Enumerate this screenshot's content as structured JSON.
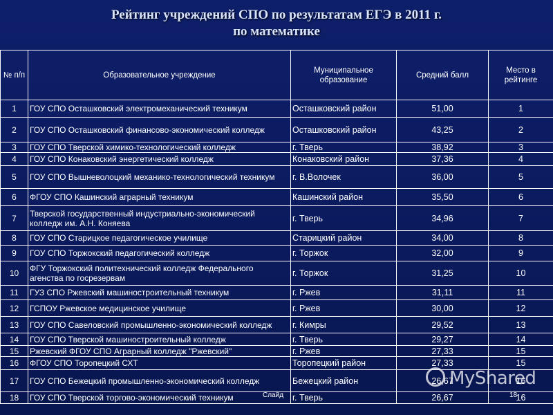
{
  "title_line1": "Рейтинг учреждений СПО по результатам ЕГЭ в 2011 г.",
  "title_line2": "по математике",
  "headers": {
    "num": "№ п/п",
    "institution": "Образовательное учреждение",
    "municipality": "Муниципальное образование",
    "score": "Средний балл",
    "rank": "Место в рейтинге"
  },
  "rows": [
    {
      "num": "1",
      "institution": "ГОУ СПО Осташковский электромеханический техникум",
      "municipality": "Осташковский район",
      "score": "51,00",
      "rank": "1"
    },
    {
      "num": "2",
      "institution": "ГОУ СПО Осташковский финансово-экономический колледж",
      "municipality": "Осташковский район",
      "score": "43,25",
      "rank": "2"
    },
    {
      "num": "3",
      "institution": "ГОУ СПО Тверской химико-технологический колледж",
      "municipality": "г. Тверь",
      "score": "38,92",
      "rank": "3"
    },
    {
      "num": "4",
      "institution": "ГОУ СПО Конаковский энергетический колледж",
      "municipality": "Конаковский район",
      "score": "37,36",
      "rank": "4"
    },
    {
      "num": "5",
      "institution": "ГОУ СПО Вышневолоцкий механико-технологический техникум",
      "municipality": "г. В.Волочек",
      "score": "36,00",
      "rank": "5"
    },
    {
      "num": "6",
      "institution": "ФГОУ СПО Кашинский аграрный техникум",
      "municipality": "Кашинский район",
      "score": "35,50",
      "rank": "6"
    },
    {
      "num": "7",
      "institution": "Тверской государственный индустриально-экономический колледж им. А.Н. Коняева",
      "municipality": "г. Тверь",
      "score": "34,96",
      "rank": "7"
    },
    {
      "num": "8",
      "institution": "ГОУ СПО Старицкое педагогическое училище",
      "municipality": "Старицкий район",
      "score": "34,00",
      "rank": "8"
    },
    {
      "num": "9",
      "institution": "ГОУ СПО Торжокский педагогический колледж",
      "municipality": "г. Торжок",
      "score": "32,00",
      "rank": "9"
    },
    {
      "num": "10",
      "institution": "ФГУ Торжокский политехнический колледж Федерального агенства по госрезервам",
      "municipality": "г. Торжок",
      "score": "31,25",
      "rank": "10"
    },
    {
      "num": "11",
      "institution": "ГУЗ СПО Ржевский машиностроительный техникум",
      "municipality": "г. Ржев",
      "score": "31,11",
      "rank": "11"
    },
    {
      "num": "12",
      "institution": "ГСПОУ Ржевское медицинское училище",
      "municipality": "г. Ржев",
      "score": "30,00",
      "rank": "12"
    },
    {
      "num": "13",
      "institution": "ГОУ СПО Савеловский промышленно-экономический колледж",
      "municipality": "г. Кимры",
      "score": "29,52",
      "rank": "13"
    },
    {
      "num": "14",
      "institution": "ГОУ СПО Тверской машиностроительный колледж",
      "municipality": "г. Тверь",
      "score": "29,27",
      "rank": "14"
    },
    {
      "num": "15",
      "institution": "Ржевский ФГОУ СПО Аграрный колледж \"Ржевский\"",
      "municipality": "г. Ржев",
      "score": "27,33",
      "rank": "15"
    },
    {
      "num": "16",
      "institution": "ФГОУ СПО Торопецкий СХТ",
      "municipality": "Торопецкий район",
      "score": "27,33",
      "rank": "15"
    },
    {
      "num": "17",
      "institution": "ГОУ СПО Бежецкий промышленно-экономический колледж",
      "municipality": "Бежецкий район",
      "score": "26,67",
      "rank": "16"
    },
    {
      "num": "18",
      "institution": "ГОУ СПО Тверской торгово-экономический техникум",
      "municipality": "г. Тверь",
      "score": "26,67",
      "rank": "16"
    }
  ],
  "footer": {
    "slide_label": "Слайд",
    "slide_number": "18",
    "watermark": "MyShared"
  }
}
